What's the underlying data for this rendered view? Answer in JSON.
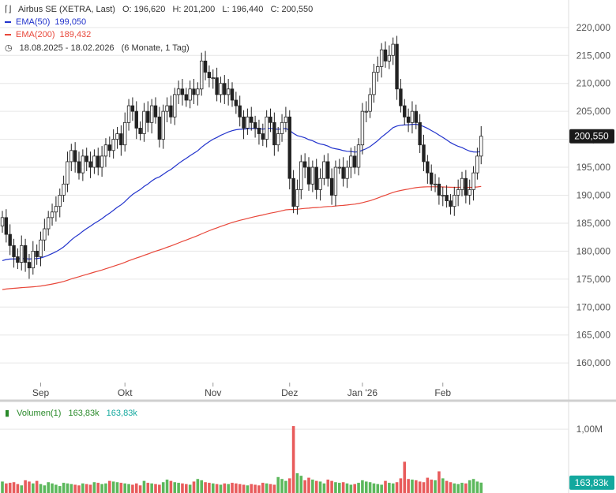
{
  "legend": {
    "instrument": "Airbus SE (XETRA, Last)",
    "ohlc": {
      "o": "O: 196,620",
      "h": "H: 201,200",
      "l": "L: 196,440",
      "c": "C: 200,550"
    },
    "ema50": {
      "label": "EMA(50)",
      "value": "199,050",
      "color": "#2233cc"
    },
    "ema200": {
      "label": "EMA(200)",
      "value": "189,432",
      "color": "#e8473a"
    },
    "range": "18.08.2025 - 18.02.2026",
    "period": "(6 Monate, 1 Tag)"
  },
  "volume_legend": {
    "label": "Volumen(1)",
    "value_green": "163,83k",
    "value_blue": "163,83k"
  },
  "last_price_badge": "200,550",
  "last_volume_badge": "163,83k",
  "colors": {
    "up": "#2f2f2f",
    "down": "#1a1a1a",
    "vol_up": "#5cb85c",
    "vol_down": "#e85c5c",
    "badge": "#1a1a1a",
    "vol_badge": "#13a89e",
    "grid": "#e6e6e6"
  },
  "chart_data": {
    "type": "candlestick",
    "price_axis": {
      "ticks": [
        160000,
        165000,
        170000,
        175000,
        180000,
        185000,
        190000,
        195000,
        200000,
        205000,
        210000,
        215000,
        220000
      ],
      "tick_labels": [
        "160,000",
        "165,000",
        "170,000",
        "175,000",
        "180,000",
        "185,000",
        "190,000",
        "195,000",
        "200,000",
        "205,000",
        "210,000",
        "215,000",
        "220,000"
      ],
      "ylim": [
        156500,
        223500
      ]
    },
    "volume_axis": {
      "ticks": [
        1000000
      ],
      "tick_labels": [
        "1,00M"
      ],
      "ylim": [
        0,
        1360000
      ]
    },
    "x_labels": [
      {
        "label": "Sep",
        "index": 10
      },
      {
        "label": "Okt",
        "index": 32
      },
      {
        "label": "Nov",
        "index": 55
      },
      {
        "label": "Dez",
        "index": 75
      },
      {
        "label": "Jan '26",
        "index": 94
      },
      {
        "label": "Feb",
        "index": 115
      }
    ],
    "close": [
      186,
      183,
      181,
      179,
      178,
      181,
      178,
      177,
      180,
      179,
      182,
      184,
      186,
      187,
      188,
      190,
      192,
      196,
      198,
      196,
      194,
      197,
      196,
      195,
      197,
      195,
      197,
      199,
      198,
      200,
      201,
      199,
      203,
      206,
      205,
      202,
      201,
      205,
      203,
      206,
      204,
      200,
      205,
      206,
      204,
      208,
      209,
      208,
      207,
      209,
      208,
      209,
      214,
      212,
      211,
      211,
      208,
      210,
      208,
      209,
      207,
      206,
      204,
      202,
      204,
      203,
      202,
      201,
      200,
      204,
      203,
      199,
      201,
      203,
      204,
      193,
      188,
      191,
      196,
      195,
      192,
      195,
      191,
      193,
      196,
      193,
      190,
      195,
      195,
      193,
      195,
      197,
      195,
      199,
      205,
      205,
      208,
      212,
      213,
      216,
      214,
      215,
      217,
      209,
      206,
      204,
      203,
      205,
      203,
      199,
      196,
      194,
      192,
      192,
      190,
      190,
      189,
      188,
      190,
      191,
      193,
      190,
      191,
      194,
      197,
      200.55
    ],
    "volume": [
      180,
      150,
      160,
      170,
      140,
      120,
      200,
      180,
      150,
      190,
      140,
      120,
      170,
      150,
      130,
      110,
      160,
      150,
      140,
      130,
      120,
      150,
      140,
      130,
      170,
      160,
      140,
      150,
      190,
      180,
      170,
      160,
      150,
      140,
      130,
      150,
      120,
      190,
      160,
      150,
      140,
      130,
      170,
      210,
      190,
      170,
      160,
      150,
      140,
      130,
      180,
      220,
      200,
      170,
      160,
      150,
      140,
      130,
      150,
      140,
      160,
      150,
      140,
      130,
      120,
      140,
      130,
      120,
      160,
      150,
      140,
      130,
      250,
      220,
      190,
      230,
      1050,
      310,
      270,
      200,
      240,
      210,
      190,
      180,
      150,
      210,
      190,
      170,
      160,
      170,
      150,
      130,
      140,
      160,
      200,
      180,
      170,
      150,
      140,
      130,
      190,
      160,
      150,
      170,
      230,
      490,
      220,
      210,
      200,
      180,
      170,
      240,
      210,
      200,
      340,
      230,
      190,
      170,
      150,
      140,
      160,
      150,
      200,
      220,
      180,
      163
    ]
  }
}
